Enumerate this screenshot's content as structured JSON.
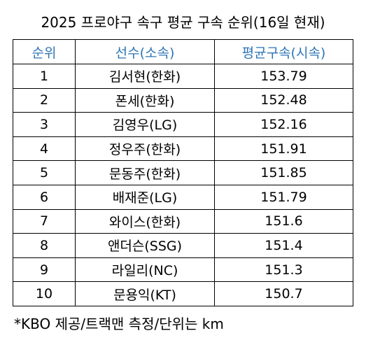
{
  "title": "2025 프로야구 속구 평균 구속 순위(16일 현재)",
  "table": {
    "header": [
      "순위",
      "선수(소속)",
      "평균구속(시속)"
    ],
    "rows": [
      [
        "1",
        "김서현(한화)",
        "153.79"
      ],
      [
        "2",
        "폰세(한화)",
        "152.48"
      ],
      [
        "3",
        "김영우(LG)",
        "152.16"
      ],
      [
        "4",
        "정우주(한화)",
        "151.91"
      ],
      [
        "5",
        "문동주(한화)",
        "151.85"
      ],
      [
        "6",
        "배재준(LG)",
        "151.79"
      ],
      [
        "7",
        "와이스(한화)",
        "151.6"
      ],
      [
        "8",
        "앤더슨(SSG)",
        "151.4"
      ],
      [
        "9",
        "라일리(NC)",
        "151.3"
      ],
      [
        "10",
        "문용익(KT)",
        "150.7"
      ]
    ]
  },
  "footnote": "*KBO 제공/트랙맨 측정/단위는 km"
}
